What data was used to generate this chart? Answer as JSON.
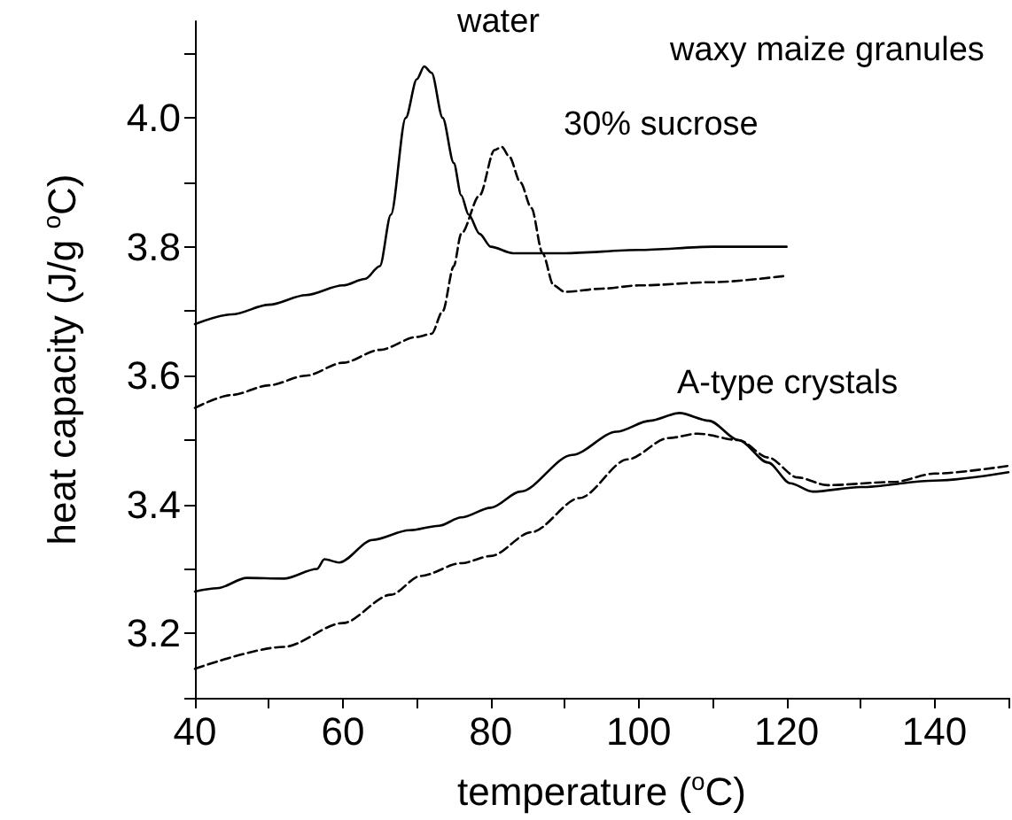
{
  "chart_data": {
    "type": "line",
    "xlabel": "temperature ($^{o}$C)",
    "ylabel": "heat capacity (J/g $^{o}$C)",
    "xlim": [
      40,
      150
    ],
    "xticks": [
      40,
      {
        "value": 50,
        "label": null
      },
      60,
      {
        "value": 70,
        "label": null
      },
      80,
      {
        "value": 90,
        "label": null
      },
      100,
      {
        "value": 110,
        "label": null
      },
      120,
      {
        "value": 130,
        "label": null
      },
      140,
      {
        "value": 150,
        "label": null
      }
    ],
    "ylim": [
      3.1,
      4.15
    ],
    "yticks": [
      {
        "value": 3.1,
        "label": null
      },
      3.2,
      {
        "value": 3.3,
        "label": null
      },
      3.4,
      {
        "value": 3.5,
        "label": null
      },
      3.6,
      {
        "value": 3.7,
        "label": null
      },
      3.8,
      {
        "value": 3.9,
        "label": null
      },
      {
        "value": 4,
        "label": "4.0"
      },
      {
        "value": 4.1,
        "label": null
      }
    ],
    "grid": false,
    "marker": "none",
    "series": [
      {
        "color": "#000000",
        "line_style": "solid",
        "x": [
          40,
          45,
          50,
          55,
          60,
          63,
          65,
          66.5,
          68.5,
          70,
          71,
          72,
          73.5,
          75,
          76,
          77,
          78.5,
          80,
          83,
          90,
          100,
          110,
          120
        ],
        "values": [
          3.68,
          3.695,
          3.71,
          3.725,
          3.74,
          3.75,
          3.77,
          3.85,
          4.0,
          4.06,
          4.08,
          4.07,
          4.0,
          3.93,
          3.88,
          3.85,
          3.82,
          3.8,
          3.79,
          3.79,
          3.795,
          3.8,
          3.8
        ]
      },
      {
        "color": "#000000",
        "line_style": "dashed",
        "x": [
          40,
          45,
          50,
          55,
          60,
          65,
          70,
          72,
          73.5,
          75,
          76,
          78.5,
          80.5,
          81.5,
          82.5,
          84,
          85.5,
          87,
          88.5,
          90,
          95,
          100,
          110,
          120
        ],
        "values": [
          3.55,
          3.57,
          3.585,
          3.6,
          3.62,
          3.64,
          3.66,
          3.665,
          3.7,
          3.77,
          3.82,
          3.88,
          3.95,
          3.955,
          3.94,
          3.9,
          3.86,
          3.79,
          3.74,
          3.73,
          3.735,
          3.74,
          3.745,
          3.755
        ]
      },
      {
        "color": "#000000",
        "line_style": "solid",
        "x": [
          40,
          43,
          47,
          52,
          56.5,
          57.5,
          59.5,
          64,
          69,
          73,
          76,
          80,
          84,
          91,
          97,
          101.5,
          105.5,
          109.5,
          113.5,
          117.5,
          120.5,
          123.5,
          130,
          140,
          150
        ],
        "values": [
          3.265,
          3.27,
          3.286,
          3.285,
          3.3,
          3.315,
          3.31,
          3.345,
          3.36,
          3.367,
          3.38,
          3.395,
          3.42,
          3.477,
          3.513,
          3.53,
          3.542,
          3.53,
          3.5,
          3.465,
          3.433,
          3.42,
          3.427,
          3.437,
          3.45
        ]
      },
      {
        "color": "#000000",
        "line_style": "dashed",
        "x": [
          40,
          52,
          60,
          66.5,
          70.5,
          76,
          80,
          85.5,
          92,
          98.5,
          104,
          108,
          113.5,
          117.5,
          121.5,
          125.5,
          134.5,
          140,
          150
        ],
        "values": [
          3.145,
          3.179,
          3.216,
          3.26,
          3.289,
          3.309,
          3.32,
          3.357,
          3.41,
          3.47,
          3.503,
          3.51,
          3.5,
          3.473,
          3.442,
          3.43,
          3.435,
          3.448,
          3.46
        ]
      }
    ],
    "annotations": [
      "water",
      "waxy maize granules",
      "30% sucrose",
      "A-type crystals"
    ]
  }
}
